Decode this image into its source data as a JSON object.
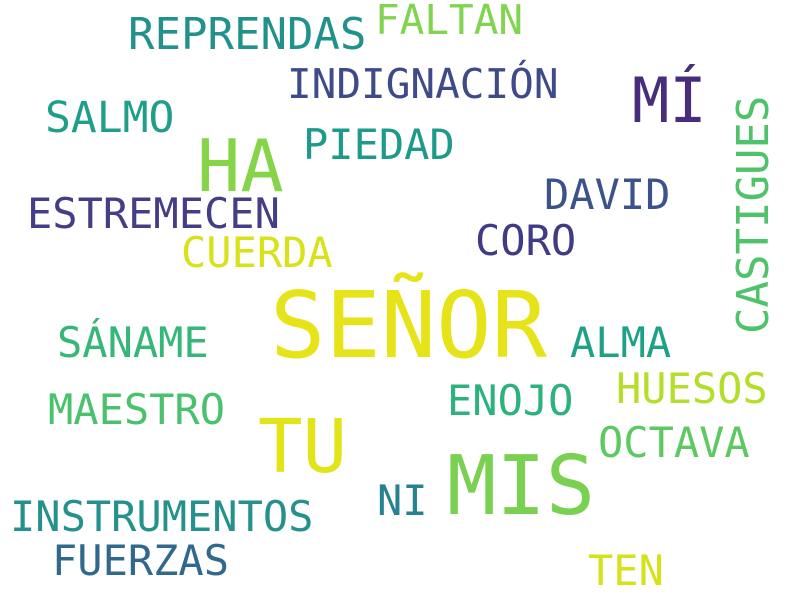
{
  "words": [
    {
      "text": "SEÑOR",
      "color": "#e6e419"
    },
    {
      "text": "MIS",
      "color": "#7ad151"
    },
    {
      "text": "TU",
      "color": "#e2e418"
    },
    {
      "text": "HA",
      "color": "#86d549"
    },
    {
      "text": "MÍ",
      "color": "#472d7b"
    },
    {
      "text": "CASTIGUES",
      "color": "#4fc369"
    },
    {
      "text": "REPRENDAS",
      "color": "#21918c"
    },
    {
      "text": "FALTAN",
      "color": "#80d44f"
    },
    {
      "text": "INDIGNACIÓN",
      "color": "#3e4a89"
    },
    {
      "text": "SALMO",
      "color": "#1f9e89"
    },
    {
      "text": "PIEDAD",
      "color": "#1e9a8a"
    },
    {
      "text": "DAVID",
      "color": "#3b528b"
    },
    {
      "text": "ESTREMECEN",
      "color": "#433e85"
    },
    {
      "text": "CORO",
      "color": "#3f3c85"
    },
    {
      "text": "CUERDA",
      "color": "#d8e219"
    },
    {
      "text": "SÁNAME",
      "color": "#35b779"
    },
    {
      "text": "ALMA",
      "color": "#1fa187"
    },
    {
      "text": "HUESOS",
      "color": "#b5de2b"
    },
    {
      "text": "ENOJO",
      "color": "#2db27d"
    },
    {
      "text": "MAESTRO",
      "color": "#4ac16d"
    },
    {
      "text": "OCTAVA",
      "color": "#5ec962"
    },
    {
      "text": "NI",
      "color": "#26828e"
    },
    {
      "text": "INSTRUMENTOS",
      "color": "#25918c"
    },
    {
      "text": "FUERZAS",
      "color": "#31688e"
    },
    {
      "text": "TEN",
      "color": "#d5e21a"
    }
  ]
}
